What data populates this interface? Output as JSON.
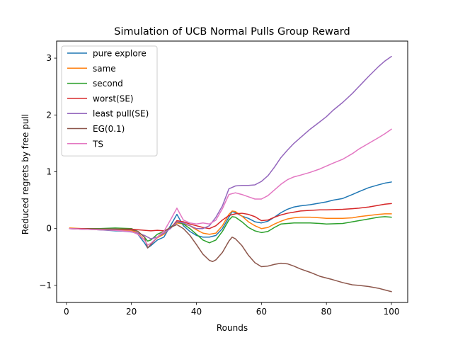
{
  "chart_data": {
    "type": "line",
    "title": "Simulation of UCB Normal Pulls Group Reward",
    "xlabel": "Rounds",
    "ylabel": "Reduced regrets by free pull",
    "xlim": [
      -3,
      105
    ],
    "ylim": [
      -1.3,
      3.3
    ],
    "xticks": [
      0,
      20,
      40,
      60,
      80,
      100
    ],
    "yticks": [
      -1,
      0,
      1,
      2,
      3
    ],
    "ytick_labels": [
      "−1",
      "0",
      "1",
      "2",
      "3"
    ],
    "grid": false,
    "legend_position": "upper-left",
    "series": [
      {
        "name": "pure explore",
        "color": "#1f77b4",
        "points": [
          [
            1,
            0.0
          ],
          [
            5,
            -0.01
          ],
          [
            10,
            -0.02
          ],
          [
            15,
            -0.04
          ],
          [
            20,
            -0.05
          ],
          [
            22,
            -0.1
          ],
          [
            24,
            -0.25
          ],
          [
            25,
            -0.34
          ],
          [
            26,
            -0.3
          ],
          [
            28,
            -0.2
          ],
          [
            30,
            -0.15
          ],
          [
            32,
            0.05
          ],
          [
            34,
            0.25
          ],
          [
            36,
            0.05
          ],
          [
            38,
            -0.05
          ],
          [
            40,
            -0.12
          ],
          [
            42,
            -0.15
          ],
          [
            44,
            -0.15
          ],
          [
            46,
            -0.12
          ],
          [
            48,
            0.0
          ],
          [
            50,
            0.2
          ],
          [
            51,
            0.3
          ],
          [
            52,
            0.28
          ],
          [
            54,
            0.22
          ],
          [
            56,
            0.18
          ],
          [
            58,
            0.12
          ],
          [
            60,
            0.1
          ],
          [
            62,
            0.13
          ],
          [
            64,
            0.2
          ],
          [
            66,
            0.28
          ],
          [
            68,
            0.34
          ],
          [
            70,
            0.38
          ],
          [
            72,
            0.4
          ],
          [
            75,
            0.42
          ],
          [
            78,
            0.45
          ],
          [
            80,
            0.47
          ],
          [
            82,
            0.5
          ],
          [
            85,
            0.53
          ],
          [
            88,
            0.6
          ],
          [
            90,
            0.65
          ],
          [
            93,
            0.72
          ],
          [
            96,
            0.77
          ],
          [
            98,
            0.8
          ],
          [
            100,
            0.82
          ]
        ]
      },
      {
        "name": "same",
        "color": "#ff7f0e",
        "points": [
          [
            1,
            0.01
          ],
          [
            5,
            0.0
          ],
          [
            10,
            -0.01
          ],
          [
            15,
            -0.02
          ],
          [
            20,
            -0.03
          ],
          [
            22,
            -0.08
          ],
          [
            24,
            -0.2
          ],
          [
            25,
            -0.29
          ],
          [
            26,
            -0.26
          ],
          [
            28,
            -0.16
          ],
          [
            30,
            -0.1
          ],
          [
            32,
            0.02
          ],
          [
            34,
            0.1
          ],
          [
            36,
            0.08
          ],
          [
            38,
            0.05
          ],
          [
            40,
            -0.02
          ],
          [
            42,
            -0.08
          ],
          [
            44,
            -0.1
          ],
          [
            46,
            -0.08
          ],
          [
            48,
            0.05
          ],
          [
            50,
            0.25
          ],
          [
            51,
            0.31
          ],
          [
            52,
            0.3
          ],
          [
            54,
            0.22
          ],
          [
            56,
            0.12
          ],
          [
            58,
            0.05
          ],
          [
            60,
            0.0
          ],
          [
            62,
            0.02
          ],
          [
            64,
            0.08
          ],
          [
            66,
            0.13
          ],
          [
            68,
            0.17
          ],
          [
            70,
            0.19
          ],
          [
            72,
            0.2
          ],
          [
            75,
            0.2
          ],
          [
            78,
            0.19
          ],
          [
            80,
            0.18
          ],
          [
            85,
            0.18
          ],
          [
            88,
            0.19
          ],
          [
            90,
            0.21
          ],
          [
            93,
            0.23
          ],
          [
            96,
            0.25
          ],
          [
            98,
            0.26
          ],
          [
            100,
            0.26
          ]
        ]
      },
      {
        "name": "second",
        "color": "#2ca02c",
        "points": [
          [
            1,
            0.0
          ],
          [
            5,
            0.0
          ],
          [
            10,
            0.0
          ],
          [
            15,
            0.01
          ],
          [
            20,
            0.0
          ],
          [
            22,
            -0.05
          ],
          [
            24,
            -0.15
          ],
          [
            25,
            -0.22
          ],
          [
            26,
            -0.2
          ],
          [
            28,
            -0.1
          ],
          [
            30,
            -0.05
          ],
          [
            32,
            0.02
          ],
          [
            34,
            0.12
          ],
          [
            36,
            0.08
          ],
          [
            38,
            0.0
          ],
          [
            40,
            -0.1
          ],
          [
            42,
            -0.2
          ],
          [
            44,
            -0.25
          ],
          [
            46,
            -0.2
          ],
          [
            48,
            -0.05
          ],
          [
            50,
            0.15
          ],
          [
            51,
            0.21
          ],
          [
            52,
            0.2
          ],
          [
            54,
            0.12
          ],
          [
            56,
            0.02
          ],
          [
            58,
            -0.04
          ],
          [
            60,
            -0.07
          ],
          [
            62,
            -0.05
          ],
          [
            64,
            0.02
          ],
          [
            66,
            0.08
          ],
          [
            68,
            0.09
          ],
          [
            70,
            0.1
          ],
          [
            72,
            0.1
          ],
          [
            75,
            0.1
          ],
          [
            78,
            0.09
          ],
          [
            80,
            0.08
          ],
          [
            85,
            0.09
          ],
          [
            88,
            0.12
          ],
          [
            90,
            0.14
          ],
          [
            93,
            0.17
          ],
          [
            96,
            0.2
          ],
          [
            98,
            0.21
          ],
          [
            100,
            0.2
          ]
        ]
      },
      {
        "name": "worst(SE)",
        "color": "#d62728",
        "points": [
          [
            1,
            0.0
          ],
          [
            5,
            0.0
          ],
          [
            10,
            -0.01
          ],
          [
            15,
            -0.01
          ],
          [
            20,
            -0.01
          ],
          [
            22,
            -0.02
          ],
          [
            24,
            -0.03
          ],
          [
            26,
            -0.04
          ],
          [
            28,
            -0.03
          ],
          [
            30,
            -0.04
          ],
          [
            32,
            0.0
          ],
          [
            34,
            0.14
          ],
          [
            36,
            0.12
          ],
          [
            38,
            0.08
          ],
          [
            40,
            0.05
          ],
          [
            42,
            0.02
          ],
          [
            44,
            0.0
          ],
          [
            46,
            0.05
          ],
          [
            48,
            0.15
          ],
          [
            50,
            0.23
          ],
          [
            52,
            0.26
          ],
          [
            54,
            0.27
          ],
          [
            56,
            0.25
          ],
          [
            58,
            0.21
          ],
          [
            60,
            0.14
          ],
          [
            62,
            0.15
          ],
          [
            64,
            0.2
          ],
          [
            66,
            0.24
          ],
          [
            68,
            0.27
          ],
          [
            70,
            0.29
          ],
          [
            72,
            0.31
          ],
          [
            75,
            0.32
          ],
          [
            78,
            0.33
          ],
          [
            80,
            0.33
          ],
          [
            85,
            0.34
          ],
          [
            88,
            0.35
          ],
          [
            90,
            0.36
          ],
          [
            93,
            0.38
          ],
          [
            96,
            0.41
          ],
          [
            98,
            0.43
          ],
          [
            100,
            0.44
          ]
        ]
      },
      {
        "name": "least pull(SE)",
        "color": "#9467bd",
        "points": [
          [
            1,
            0.0
          ],
          [
            5,
            -0.01
          ],
          [
            10,
            -0.02
          ],
          [
            15,
            -0.03
          ],
          [
            20,
            -0.06
          ],
          [
            22,
            -0.08
          ],
          [
            24,
            -0.12
          ],
          [
            26,
            -0.18
          ],
          [
            28,
            -0.15
          ],
          [
            30,
            -0.08
          ],
          [
            32,
            0.0
          ],
          [
            34,
            0.12
          ],
          [
            36,
            0.1
          ],
          [
            38,
            0.05
          ],
          [
            40,
            0.0
          ],
          [
            42,
            0.0
          ],
          [
            44,
            0.05
          ],
          [
            46,
            0.2
          ],
          [
            48,
            0.4
          ],
          [
            50,
            0.7
          ],
          [
            52,
            0.75
          ],
          [
            54,
            0.76
          ],
          [
            56,
            0.76
          ],
          [
            58,
            0.77
          ],
          [
            60,
            0.83
          ],
          [
            62,
            0.93
          ],
          [
            64,
            1.08
          ],
          [
            66,
            1.25
          ],
          [
            68,
            1.38
          ],
          [
            70,
            1.5
          ],
          [
            72,
            1.6
          ],
          [
            75,
            1.75
          ],
          [
            78,
            1.88
          ],
          [
            80,
            1.97
          ],
          [
            82,
            2.08
          ],
          [
            85,
            2.22
          ],
          [
            88,
            2.38
          ],
          [
            90,
            2.5
          ],
          [
            93,
            2.68
          ],
          [
            96,
            2.85
          ],
          [
            98,
            2.95
          ],
          [
            100,
            3.03
          ]
        ]
      },
      {
        "name": "EG(0.1)",
        "color": "#8c564b",
        "points": [
          [
            1,
            0.0
          ],
          [
            5,
            -0.01
          ],
          [
            10,
            -0.01
          ],
          [
            15,
            -0.01
          ],
          [
            20,
            -0.02
          ],
          [
            22,
            -0.05
          ],
          [
            24,
            -0.15
          ],
          [
            25,
            -0.34
          ],
          [
            26,
            -0.28
          ],
          [
            28,
            -0.15
          ],
          [
            30,
            -0.05
          ],
          [
            32,
            0.02
          ],
          [
            34,
            0.07
          ],
          [
            36,
            0.0
          ],
          [
            38,
            -0.12
          ],
          [
            40,
            -0.28
          ],
          [
            42,
            -0.45
          ],
          [
            44,
            -0.56
          ],
          [
            45,
            -0.58
          ],
          [
            46,
            -0.55
          ],
          [
            48,
            -0.42
          ],
          [
            50,
            -0.22
          ],
          [
            51,
            -0.15
          ],
          [
            52,
            -0.18
          ],
          [
            54,
            -0.3
          ],
          [
            56,
            -0.47
          ],
          [
            58,
            -0.6
          ],
          [
            60,
            -0.67
          ],
          [
            62,
            -0.66
          ],
          [
            64,
            -0.63
          ],
          [
            66,
            -0.61
          ],
          [
            68,
            -0.62
          ],
          [
            70,
            -0.66
          ],
          [
            72,
            -0.71
          ],
          [
            75,
            -0.77
          ],
          [
            78,
            -0.84
          ],
          [
            80,
            -0.87
          ],
          [
            82,
            -0.9
          ],
          [
            85,
            -0.95
          ],
          [
            88,
            -0.99
          ],
          [
            90,
            -1.0
          ],
          [
            93,
            -1.02
          ],
          [
            96,
            -1.05
          ],
          [
            98,
            -1.08
          ],
          [
            100,
            -1.11
          ]
        ]
      },
      {
        "name": "TS",
        "color": "#e377c2",
        "points": [
          [
            1,
            0.0
          ],
          [
            5,
            -0.01
          ],
          [
            10,
            -0.02
          ],
          [
            15,
            -0.03
          ],
          [
            20,
            -0.05
          ],
          [
            22,
            -0.1
          ],
          [
            24,
            -0.2
          ],
          [
            25,
            -0.29
          ],
          [
            26,
            -0.26
          ],
          [
            28,
            -0.15
          ],
          [
            30,
            -0.05
          ],
          [
            32,
            0.15
          ],
          [
            34,
            0.36
          ],
          [
            36,
            0.15
          ],
          [
            38,
            0.1
          ],
          [
            40,
            0.08
          ],
          [
            42,
            0.1
          ],
          [
            44,
            0.08
          ],
          [
            46,
            0.15
          ],
          [
            48,
            0.35
          ],
          [
            50,
            0.6
          ],
          [
            52,
            0.63
          ],
          [
            54,
            0.6
          ],
          [
            56,
            0.56
          ],
          [
            58,
            0.52
          ],
          [
            60,
            0.52
          ],
          [
            62,
            0.58
          ],
          [
            64,
            0.68
          ],
          [
            66,
            0.78
          ],
          [
            68,
            0.86
          ],
          [
            70,
            0.91
          ],
          [
            72,
            0.94
          ],
          [
            75,
            0.99
          ],
          [
            78,
            1.05
          ],
          [
            80,
            1.1
          ],
          [
            82,
            1.15
          ],
          [
            85,
            1.22
          ],
          [
            88,
            1.32
          ],
          [
            90,
            1.4
          ],
          [
            93,
            1.5
          ],
          [
            96,
            1.6
          ],
          [
            98,
            1.67
          ],
          [
            100,
            1.75
          ]
        ]
      }
    ]
  }
}
